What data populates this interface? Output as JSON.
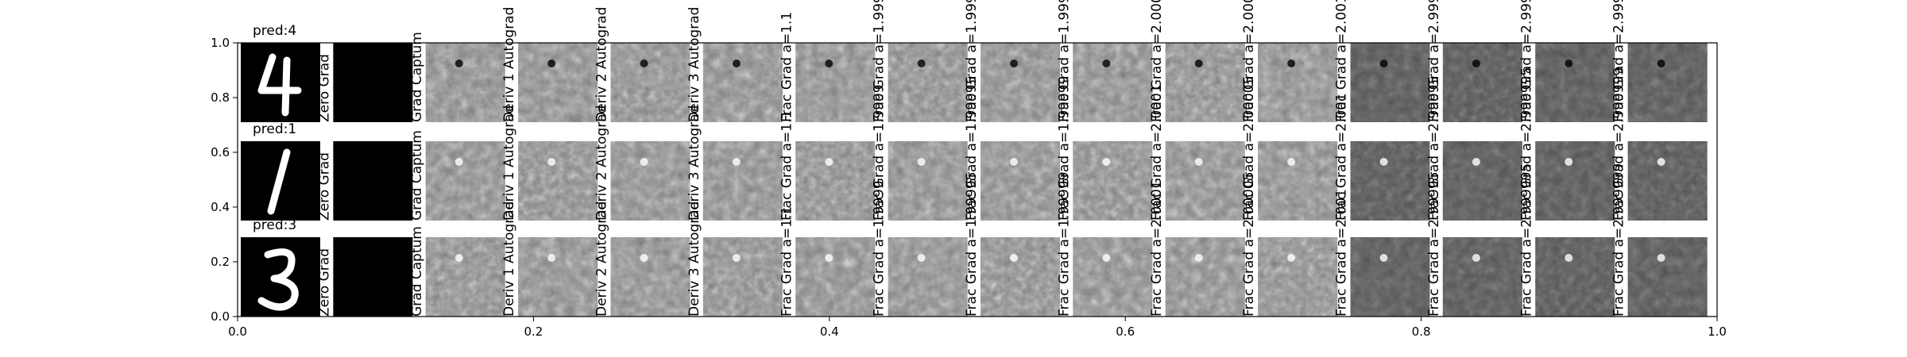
{
  "chart_data": {
    "type": "image-grid",
    "title": "",
    "xlabel": "",
    "ylabel": "",
    "xlim": [
      0.0,
      1.0
    ],
    "ylim": [
      0.0,
      1.0
    ],
    "xticks": [
      "0.0",
      "0.2",
      "0.4",
      "0.6",
      "0.8",
      "1.0"
    ],
    "yticks": [
      "0.0",
      "0.2",
      "0.4",
      "0.6",
      "0.8",
      "1.0"
    ],
    "rows": [
      {
        "pred": "pred:4",
        "digit": "4",
        "predicted_class": 4
      },
      {
        "pred": "pred:1",
        "digit": "1",
        "predicted_class": 1
      },
      {
        "pred": "pred:3",
        "digit": "3",
        "predicted_class": 3
      }
    ],
    "columns": [
      {
        "label": "",
        "kind": "input"
      },
      {
        "label": "Zero Grad",
        "kind": "zero"
      },
      {
        "label": "Grad Captum",
        "kind": "grad"
      },
      {
        "label": "Deriv 1 Autograd",
        "kind": "grad"
      },
      {
        "label": "Deriv 2 Autograd",
        "kind": "grad"
      },
      {
        "label": "Deriv 3 Autograd",
        "kind": "grad"
      },
      {
        "label": "Frac Grad a=1.1",
        "kind": "grad"
      },
      {
        "label": "Frac Grad a=1.9999",
        "kind": "grad"
      },
      {
        "label": "Frac Grad a=1.99995",
        "kind": "grad"
      },
      {
        "label": "Frac Grad a=1.99999",
        "kind": "grad"
      },
      {
        "label": "Frac Grad a=2.0001",
        "kind": "grad"
      },
      {
        "label": "Frac Grad a=2.00005",
        "kind": "grad"
      },
      {
        "label": "Frac Grad a=2.001",
        "kind": "grad"
      },
      {
        "label": "Frac Grad a=2.99995",
        "kind": "grad"
      },
      {
        "label": "Frac Grad a=2.999995",
        "kind": "grad"
      },
      {
        "label": "Frac Grad a=2.999999",
        "kind": "grad"
      }
    ],
    "cmap": "gray",
    "grid": false,
    "legend": "none"
  }
}
